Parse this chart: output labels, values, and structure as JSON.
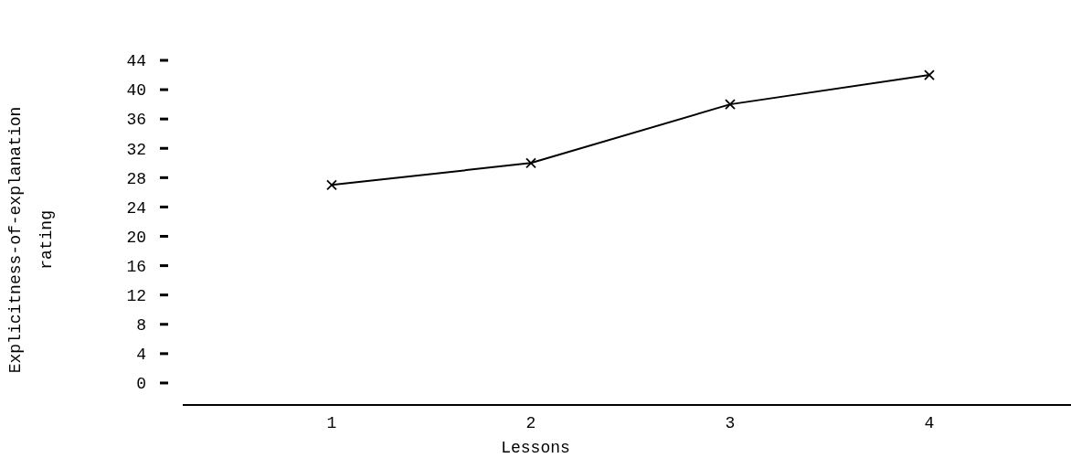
{
  "chart_data": {
    "type": "line",
    "xlabel": "Lessons",
    "ylabel": "Explicitness-of-explanation rating",
    "categories": [
      "1",
      "2",
      "3",
      "4"
    ],
    "series": [
      {
        "color": "#000000",
        "values": [
          27,
          30,
          38,
          42
        ]
      }
    ],
    "ylim": [
      -3,
      44
    ],
    "yticks": [
      0,
      4,
      8,
      12,
      16,
      20,
      24,
      28,
      32,
      36,
      40,
      44
    ],
    "marker": "cross",
    "line_style": "solid"
  }
}
